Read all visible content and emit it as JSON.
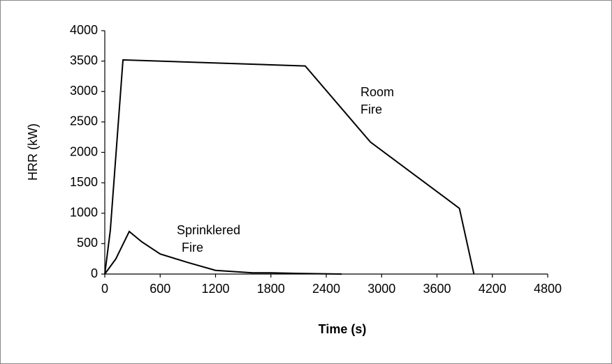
{
  "chart_data": {
    "type": "line",
    "xlabel": "Time (s)",
    "ylabel": "HRR (kW)",
    "xlim": [
      0,
      4800
    ],
    "xticks": [
      0,
      600,
      1200,
      1800,
      2400,
      3000,
      3600,
      4200,
      4800
    ],
    "ylim": [
      0,
      4000
    ],
    "yticks": [
      0,
      500,
      1000,
      1500,
      2000,
      2500,
      3000,
      3500,
      4000
    ],
    "series": [
      {
        "name": "Room Fire",
        "color": "#000000",
        "x": [
          0,
          60,
          197,
          2172,
          2878,
          3843,
          4000
        ],
        "values": [
          0,
          720,
          3520,
          3420,
          2170,
          1080,
          0
        ]
      },
      {
        "name": "Sprinklered Fire",
        "color": "#000000",
        "x": [
          0,
          120,
          265,
          400,
          600,
          900,
          1200,
          1600,
          1800,
          2100,
          2567
        ],
        "values": [
          0,
          250,
          700,
          530,
          330,
          190,
          60,
          20,
          20,
          10,
          0
        ]
      }
    ],
    "annotations": [
      [
        "Room",
        "Fire"
      ],
      [
        "Sprinklered",
        "Fire"
      ]
    ]
  }
}
